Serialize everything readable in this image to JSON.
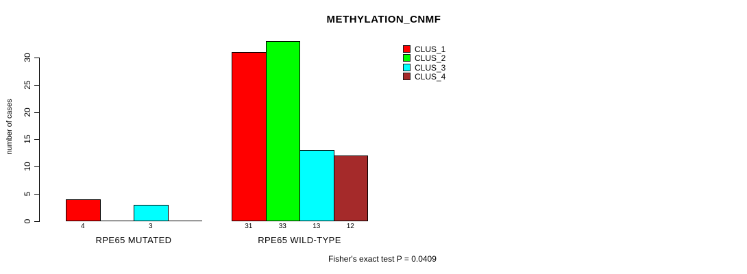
{
  "chart_data": {
    "type": "bar",
    "title": "METHYLATION_CNMF",
    "ylabel": "number of cases",
    "xlabel": "",
    "ylim": [
      0,
      30
    ],
    "yticks": [
      0,
      5,
      10,
      15,
      20,
      25,
      30
    ],
    "grid": false,
    "legend_position": "top-right",
    "categories": [
      "RPE65 MUTATED",
      "RPE65 WILD-TYPE"
    ],
    "series": [
      {
        "name": "CLUS_1",
        "color": "#ff0000",
        "values": [
          4,
          31
        ]
      },
      {
        "name": "CLUS_2",
        "color": "#00ff00",
        "values": [
          0,
          33
        ]
      },
      {
        "name": "CLUS_3",
        "color": "#00ffff",
        "values": [
          3,
          13
        ]
      },
      {
        "name": "CLUS_4",
        "color": "#a52a2a",
        "values": [
          0,
          12
        ]
      }
    ],
    "value_labels_shown": [
      "4",
      "3",
      "31",
      "33",
      "13",
      "12"
    ],
    "zero_value_bars_drawn_flat": true,
    "footnote": "Fisher's exact test P = 0.0409",
    "axis_color": "#000000",
    "text_color": "#000000",
    "background": "#ffffff"
  }
}
